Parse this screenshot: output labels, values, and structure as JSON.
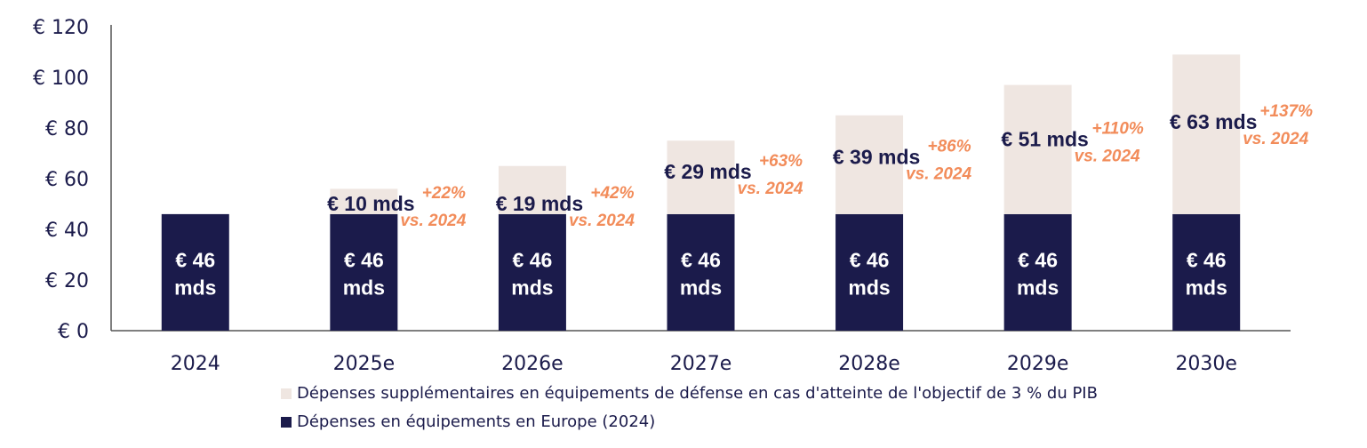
{
  "colors": {
    "base": "#1b1b4b",
    "extra": "#efe6e1",
    "pct": "#f28c5a",
    "axis": "#555555"
  },
  "chart_data": {
    "type": "bar",
    "stacked": true,
    "categories": [
      "2024",
      "2025e",
      "2026e",
      "2027e",
      "2028e",
      "2029e",
      "2030e"
    ],
    "series": [
      {
        "name": "Dépenses en équipements en Europe (2024)",
        "values": [
          46,
          46,
          46,
          46,
          46,
          46,
          46
        ],
        "labels": [
          [
            "€ 46",
            "mds"
          ],
          [
            "€ 46",
            "mds"
          ],
          [
            "€ 46",
            "mds"
          ],
          [
            "€ 46",
            "mds"
          ],
          [
            "€ 46",
            "mds"
          ],
          [
            "€ 46",
            "mds"
          ],
          [
            "€ 46",
            "mds"
          ]
        ]
      },
      {
        "name": "Dépenses supplémentaires en équipements de défense en cas d'atteinte de l'objectif de 3 % du PIB",
        "values": [
          0,
          10,
          19,
          29,
          39,
          51,
          63
        ],
        "labels": [
          "",
          "€ 10 mds",
          "€ 19 mds",
          "€ 29 mds",
          "€ 39 mds",
          "€ 51 mds",
          "€ 63 mds"
        ]
      }
    ],
    "annotations": [
      null,
      [
        "+22%",
        "vs. 2024"
      ],
      [
        "+42%",
        "vs. 2024"
      ],
      [
        "+63%",
        "vs. 2024"
      ],
      [
        "+86%",
        "vs. 2024"
      ],
      [
        "+110%",
        "vs. 2024"
      ],
      [
        "+137%",
        "vs. 2024"
      ]
    ],
    "ylim": [
      0,
      120
    ],
    "yticks": [
      0,
      20,
      40,
      60,
      80,
      100,
      120
    ],
    "ytick_labels": [
      "€ 0",
      "€ 20",
      "€ 40",
      "€ 60",
      "€ 80",
      "€ 100",
      "€ 120"
    ],
    "legend_position": "bottom",
    "grid": false
  },
  "legend": {
    "extra": "Dépenses supplémentaires en équipements de défense en cas d'atteinte de l'objectif de 3 % du PIB",
    "base": "Dépenses en équipements en Europe (2024)"
  }
}
